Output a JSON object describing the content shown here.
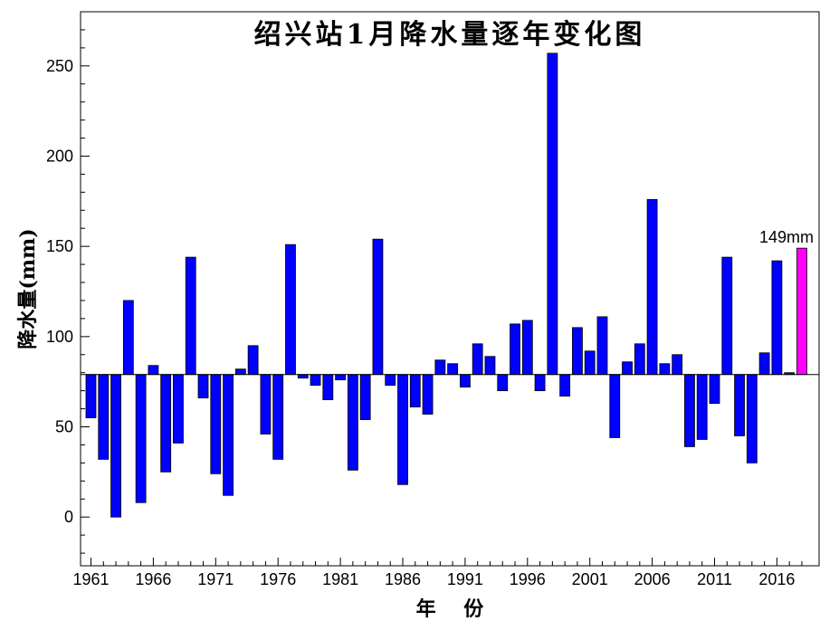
{
  "chart_data": {
    "type": "bar",
    "title": "绍兴站1月降水量逐年变化图",
    "xlabel": "年    份",
    "ylabel": "降水量(mm)",
    "ylim": [
      -27,
      280
    ],
    "y_ticks": [
      0,
      50,
      100,
      150,
      200,
      250
    ],
    "x_tick_labels": [
      "1961",
      "1966",
      "1971",
      "1976",
      "1981",
      "1986",
      "1991",
      "1996",
      "2001",
      "2006",
      "2011",
      "2016"
    ],
    "baseline": 79,
    "grid": false,
    "bar_color": "#0000ff",
    "highlight_color": "#ff00ff",
    "categories": [
      1961,
      1962,
      1963,
      1964,
      1965,
      1966,
      1967,
      1968,
      1969,
      1970,
      1971,
      1972,
      1973,
      1974,
      1975,
      1976,
      1977,
      1978,
      1979,
      1980,
      1981,
      1982,
      1983,
      1984,
      1985,
      1986,
      1987,
      1988,
      1989,
      1990,
      1991,
      1992,
      1993,
      1994,
      1995,
      1996,
      1997,
      1998,
      1999,
      2000,
      2001,
      2002,
      2003,
      2004,
      2005,
      2006,
      2007,
      2008,
      2009,
      2010,
      2011,
      2012,
      2013,
      2014,
      2015,
      2016,
      2017,
      2018
    ],
    "values": [
      55,
      32,
      0,
      120,
      8,
      84,
      25,
      41,
      144,
      66,
      24,
      12,
      82,
      95,
      46,
      32,
      151,
      77,
      73,
      65,
      76,
      26,
      54,
      154,
      73,
      18,
      61,
      57,
      87,
      85,
      72,
      96,
      89,
      70,
      107,
      109,
      70,
      257,
      67,
      105,
      92,
      111,
      44,
      86,
      96,
      176,
      85,
      90,
      39,
      43,
      63,
      144,
      45,
      30,
      91,
      142,
      80,
      149
    ],
    "highlight": {
      "year": 2018,
      "value": 149,
      "label": "149mm"
    }
  }
}
